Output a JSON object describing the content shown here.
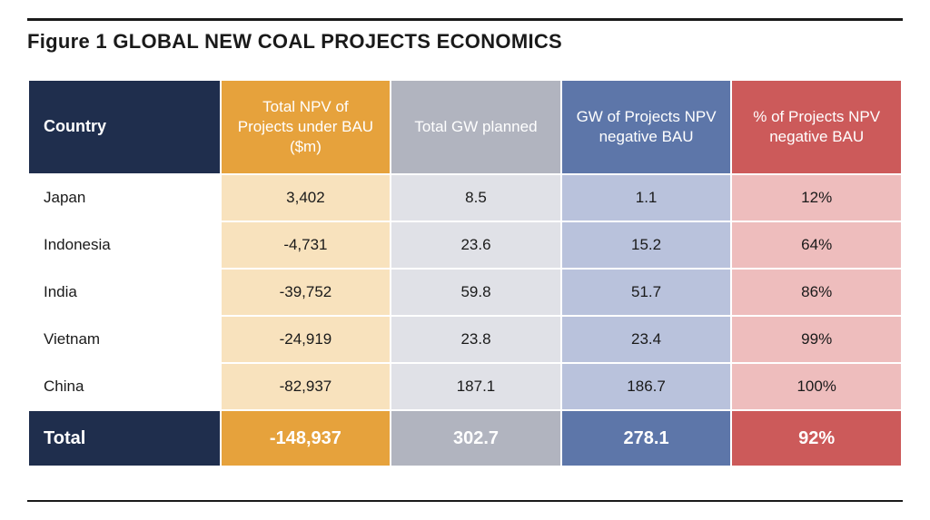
{
  "figure": {
    "title": "Figure 1 GLOBAL NEW COAL PROJECTS ECONOMICS",
    "rule_color": "#1a1a1a",
    "columns": [
      {
        "key": "country",
        "label": "Country",
        "header_bg": "#1f2e4d",
        "body_bg": "#ffffff",
        "body_color": "#1a1a1a",
        "total_bg": "#1f2e4d",
        "width": "22%"
      },
      {
        "key": "npv",
        "label": "Total NPV of Projects under BAU ($m)",
        "header_bg": "#e6a23c",
        "body_bg": "#f8e2bd",
        "body_color": "#1a1a1a",
        "total_bg": "#e6a23c",
        "width": "19.5%"
      },
      {
        "key": "gw",
        "label": "Total GW planned",
        "header_bg": "#b1b4bf",
        "body_bg": "#e0e1e7",
        "body_color": "#1a1a1a",
        "total_bg": "#b1b4bf",
        "width": "19.5%"
      },
      {
        "key": "gwneg",
        "label": "GW of Projects NPV negative BAU",
        "header_bg": "#5d76a9",
        "body_bg": "#b9c2dc",
        "body_color": "#1a1a1a",
        "total_bg": "#5d76a9",
        "width": "19.5%"
      },
      {
        "key": "pct",
        "label": "% of Projects NPV negative BAU",
        "header_bg": "#cc5a5a",
        "body_bg": "#eebdbd",
        "body_color": "#1a1a1a",
        "total_bg": "#cc5a5a",
        "width": "19.5%"
      }
    ],
    "rows": [
      {
        "country": "Japan",
        "npv": "3,402",
        "gw": "8.5",
        "gwneg": "1.1",
        "pct": "12%"
      },
      {
        "country": "Indonesia",
        "npv": "-4,731",
        "gw": "23.6",
        "gwneg": "15.2",
        "pct": "64%"
      },
      {
        "country": "India",
        "npv": "-39,752",
        "gw": "59.8",
        "gwneg": "51.7",
        "pct": "86%"
      },
      {
        "country": "Vietnam",
        "npv": "-24,919",
        "gw": "23.8",
        "gwneg": "23.4",
        "pct": "99%"
      },
      {
        "country": "China",
        "npv": "-82,937",
        "gw": "187.1",
        "gwneg": "186.7",
        "pct": "100%"
      }
    ],
    "total": {
      "country": "Total",
      "npv": "-148,937",
      "gw": "302.7",
      "gwneg": "278.1",
      "pct": "92%"
    }
  }
}
